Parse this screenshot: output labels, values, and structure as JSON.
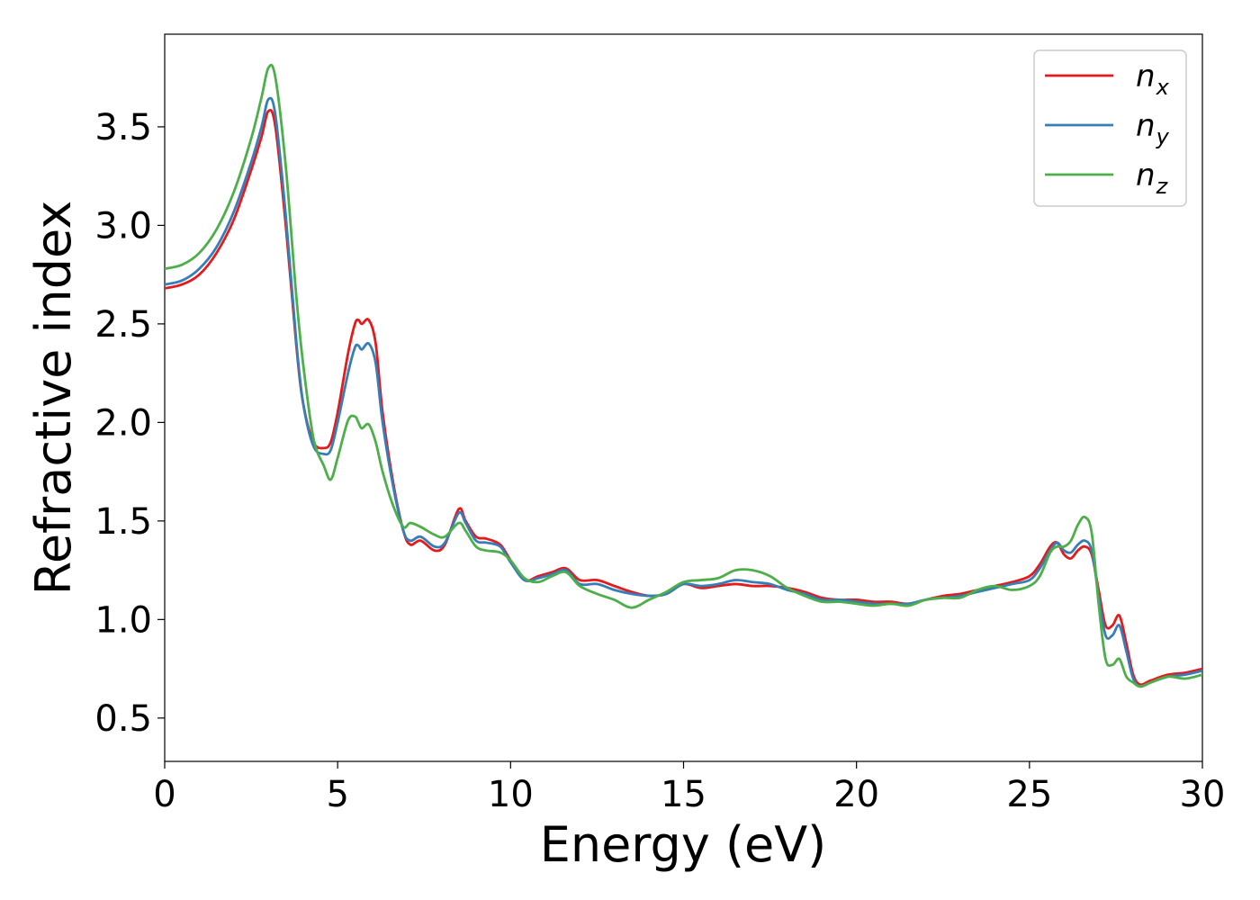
{
  "chart_data": {
    "type": "line",
    "title": "",
    "xlabel": "Energy (eV)",
    "ylabel": "Refractive index",
    "xlim": [
      0,
      30
    ],
    "ylim": [
      0.28,
      3.97
    ],
    "xticks": [
      0,
      5,
      10,
      15,
      20,
      25,
      30
    ],
    "xtick_labels": [
      "0",
      "5",
      "10",
      "15",
      "20",
      "25",
      "30"
    ],
    "yticks": [
      0.5,
      1.0,
      1.5,
      2.0,
      2.5,
      3.0,
      3.5
    ],
    "ytick_labels": [
      "0.5",
      "1.0",
      "1.5",
      "2.0",
      "2.5",
      "3.0",
      "3.5"
    ],
    "grid": false,
    "legend_position": "top-right",
    "series": [
      {
        "name": "n",
        "subscript": "x",
        "color": "#e41a1c",
        "x": [
          0,
          0.5,
          1,
          1.5,
          2,
          2.5,
          2.8,
          3.0,
          3.2,
          3.5,
          3.8,
          4.0,
          4.3,
          4.6,
          4.8,
          5.0,
          5.3,
          5.5,
          5.6,
          5.7,
          5.9,
          6.1,
          6.3,
          6.6,
          6.9,
          7.1,
          7.4,
          7.8,
          8.1,
          8.5,
          8.7,
          9.0,
          9.3,
          9.7,
          10.0,
          10.4,
          10.8,
          11.2,
          11.6,
          12.0,
          12.5,
          13.0,
          13.5,
          14.0,
          14.5,
          15.0,
          15.5,
          16.0,
          16.5,
          17.0,
          17.5,
          18.0,
          18.5,
          19.0,
          19.5,
          20.0,
          20.5,
          21.0,
          21.5,
          22.0,
          22.5,
          23.0,
          23.5,
          24.0,
          24.5,
          25.0,
          25.3,
          25.6,
          25.8,
          26.0,
          26.2,
          26.4,
          26.6,
          26.8,
          27.0,
          27.2,
          27.4,
          27.6,
          27.8,
          28.0,
          28.2,
          28.5,
          29.0,
          29.5,
          30.0
        ],
        "y": [
          2.68,
          2.7,
          2.75,
          2.86,
          3.03,
          3.28,
          3.45,
          3.58,
          3.5,
          3.0,
          2.4,
          2.1,
          1.9,
          1.87,
          1.9,
          2.05,
          2.35,
          2.5,
          2.52,
          2.5,
          2.52,
          2.4,
          2.05,
          1.7,
          1.45,
          1.38,
          1.4,
          1.35,
          1.38,
          1.56,
          1.5,
          1.42,
          1.41,
          1.38,
          1.3,
          1.2,
          1.22,
          1.24,
          1.26,
          1.2,
          1.2,
          1.17,
          1.14,
          1.12,
          1.13,
          1.18,
          1.16,
          1.17,
          1.18,
          1.17,
          1.17,
          1.16,
          1.14,
          1.11,
          1.1,
          1.1,
          1.09,
          1.09,
          1.08,
          1.1,
          1.12,
          1.13,
          1.15,
          1.17,
          1.19,
          1.22,
          1.28,
          1.37,
          1.39,
          1.33,
          1.31,
          1.35,
          1.37,
          1.33,
          1.15,
          0.97,
          0.97,
          1.02,
          0.88,
          0.72,
          0.67,
          0.69,
          0.72,
          0.73,
          0.75
        ]
      },
      {
        "name": "n",
        "subscript": "y",
        "color": "#377eb8",
        "x": [
          0,
          0.5,
          1,
          1.5,
          2,
          2.5,
          2.8,
          3.0,
          3.2,
          3.5,
          3.8,
          4.0,
          4.3,
          4.6,
          4.8,
          5.0,
          5.3,
          5.5,
          5.6,
          5.7,
          5.9,
          6.1,
          6.3,
          6.6,
          6.9,
          7.1,
          7.4,
          7.8,
          8.1,
          8.5,
          8.7,
          9.0,
          9.3,
          9.7,
          10.0,
          10.4,
          10.8,
          11.2,
          11.6,
          12.0,
          12.5,
          13.0,
          13.5,
          14.0,
          14.5,
          15.0,
          15.5,
          16.0,
          16.5,
          17.0,
          17.5,
          18.0,
          18.5,
          19.0,
          19.5,
          20.0,
          20.5,
          21.0,
          21.5,
          22.0,
          22.5,
          23.0,
          23.5,
          24.0,
          24.5,
          25.0,
          25.3,
          25.6,
          25.8,
          26.0,
          26.2,
          26.4,
          26.6,
          26.8,
          27.0,
          27.2,
          27.4,
          27.6,
          27.8,
          28.0,
          28.2,
          28.5,
          29.0,
          29.5,
          30.0
        ],
        "y": [
          2.7,
          2.72,
          2.78,
          2.89,
          3.07,
          3.32,
          3.5,
          3.64,
          3.56,
          3.05,
          2.42,
          2.1,
          1.88,
          1.84,
          1.86,
          2.0,
          2.25,
          2.38,
          2.39,
          2.37,
          2.4,
          2.3,
          2.0,
          1.68,
          1.45,
          1.4,
          1.42,
          1.37,
          1.39,
          1.54,
          1.49,
          1.4,
          1.39,
          1.37,
          1.29,
          1.2,
          1.21,
          1.23,
          1.25,
          1.18,
          1.18,
          1.15,
          1.13,
          1.12,
          1.13,
          1.18,
          1.17,
          1.18,
          1.2,
          1.19,
          1.18,
          1.15,
          1.13,
          1.1,
          1.1,
          1.09,
          1.08,
          1.08,
          1.08,
          1.1,
          1.11,
          1.12,
          1.14,
          1.16,
          1.18,
          1.2,
          1.26,
          1.35,
          1.39,
          1.35,
          1.34,
          1.38,
          1.4,
          1.35,
          1.12,
          0.92,
          0.92,
          0.97,
          0.84,
          0.7,
          0.66,
          0.68,
          0.71,
          0.72,
          0.74
        ]
      },
      {
        "name": "n",
        "subscript": "z",
        "color": "#4daf4a",
        "x": [
          0,
          0.5,
          1,
          1.5,
          2,
          2.5,
          2.8,
          3.0,
          3.2,
          3.5,
          3.8,
          4.0,
          4.3,
          4.6,
          4.8,
          5.0,
          5.3,
          5.5,
          5.6,
          5.7,
          5.9,
          6.1,
          6.3,
          6.6,
          6.9,
          7.1,
          7.4,
          7.8,
          8.1,
          8.5,
          8.7,
          9.0,
          9.3,
          9.7,
          10.0,
          10.4,
          10.8,
          11.2,
          11.6,
          12.0,
          12.5,
          13.0,
          13.5,
          14.0,
          14.5,
          15.0,
          15.5,
          16.0,
          16.5,
          17.0,
          17.5,
          18.0,
          18.5,
          19.0,
          19.5,
          20.0,
          20.5,
          21.0,
          21.5,
          22.0,
          22.5,
          23.0,
          23.5,
          24.0,
          24.5,
          25.0,
          25.3,
          25.6,
          25.8,
          26.0,
          26.2,
          26.4,
          26.6,
          26.8,
          27.0,
          27.2,
          27.4,
          27.6,
          27.8,
          28.0,
          28.2,
          28.5,
          29.0,
          29.5,
          30.0
        ],
        "y": [
          2.78,
          2.8,
          2.86,
          2.98,
          3.17,
          3.44,
          3.65,
          3.8,
          3.75,
          3.3,
          2.65,
          2.3,
          1.92,
          1.78,
          1.71,
          1.82,
          2.01,
          2.03,
          2.0,
          1.97,
          1.99,
          1.9,
          1.75,
          1.58,
          1.47,
          1.49,
          1.47,
          1.43,
          1.42,
          1.49,
          1.45,
          1.37,
          1.35,
          1.34,
          1.3,
          1.21,
          1.19,
          1.22,
          1.24,
          1.17,
          1.13,
          1.1,
          1.06,
          1.1,
          1.14,
          1.19,
          1.2,
          1.21,
          1.25,
          1.25,
          1.22,
          1.16,
          1.12,
          1.09,
          1.09,
          1.08,
          1.07,
          1.08,
          1.07,
          1.1,
          1.11,
          1.11,
          1.15,
          1.17,
          1.15,
          1.17,
          1.22,
          1.34,
          1.37,
          1.37,
          1.4,
          1.48,
          1.52,
          1.44,
          1.08,
          0.8,
          0.77,
          0.8,
          0.71,
          0.68,
          0.66,
          0.68,
          0.71,
          0.7,
          0.72
        ]
      }
    ]
  }
}
